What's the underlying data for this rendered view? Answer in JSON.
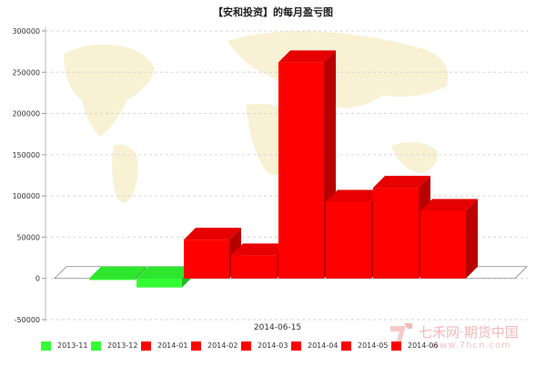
{
  "chart_data": {
    "type": "bar",
    "title": "【安和投资】的每月盈亏图",
    "xlabel": "2014-06-15",
    "ylabel": "",
    "ylim": [
      -50000,
      300000
    ],
    "yticks": [
      -50000,
      0,
      50000,
      100000,
      150000,
      200000,
      250000,
      300000
    ],
    "grid": true,
    "legend_position": "bottom",
    "categories": [
      "2013-11",
      "2013-12",
      "2014-01",
      "2014-02",
      "2014-03",
      "2014-04",
      "2014-05",
      "2014-06"
    ],
    "values": [
      -2000,
      -11000,
      47000,
      28000,
      262000,
      93000,
      110000,
      82000
    ],
    "colors": [
      "#33ff33",
      "#33ff33",
      "#ff0000",
      "#ff0000",
      "#ff0000",
      "#ff0000",
      "#ff0000",
      "#ff0000"
    ]
  },
  "watermark": {
    "text": "七禾网·期货中国",
    "url": "www.7hcn.com"
  }
}
